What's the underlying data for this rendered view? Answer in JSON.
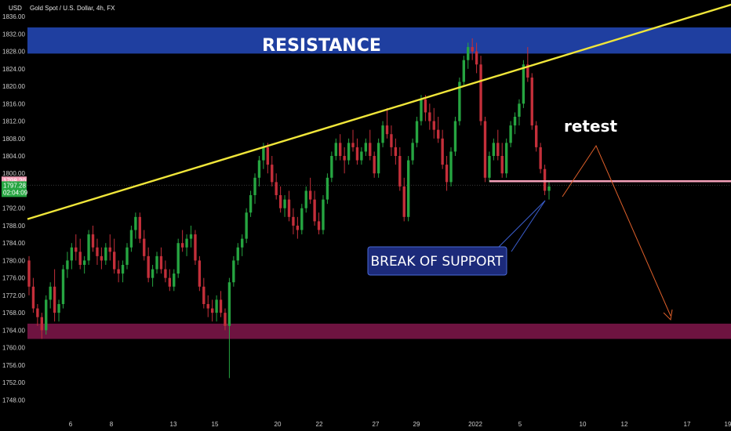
{
  "header": {
    "symbol": "Gold Spot / U.S. Dollar, 4h, FX",
    "currency": "USD"
  },
  "annotations": {
    "resistance": "RESISTANCE",
    "retest": "retest",
    "break_of_support": "BREAK OF SUPPORT"
  },
  "colors": {
    "background": "#000000",
    "bull": "#26a541",
    "bear": "#c42f3a",
    "resistance_zone": "#1f3fa0",
    "support_zone": "#6e1340",
    "trendline": "#f0e63a",
    "support_line": "#f3a0b8",
    "arrow": "#e0602a",
    "break_box": "#1c2a7a"
  },
  "chart_data": {
    "type": "candlestick",
    "title": "Gold Spot / U.S. Dollar, 4h, FX",
    "ylim": [
      1745,
      1838
    ],
    "y_ticks": [
      "1748.00",
      "1752.00",
      "1756.00",
      "1760.00",
      "1764.00",
      "1768.00",
      "1772.00",
      "1776.00",
      "1780.00",
      "1784.00",
      "1788.00",
      "1792.00",
      "1796.00",
      "1800.00",
      "1804.00",
      "1808.00",
      "1812.00",
      "1816.00",
      "1820.00",
      "1824.00",
      "1828.00",
      "1832.00",
      "1836.00"
    ],
    "x_ticks": [
      "6",
      "8",
      "13",
      "15",
      "20",
      "22",
      "27",
      "29",
      "2022",
      "5",
      "10",
      "12",
      "17",
      "19"
    ],
    "price_tags": [
      {
        "value": 1798.2,
        "text": "1798.20",
        "color": "#f3a0b8"
      },
      {
        "value": 1797.28,
        "text": "1797.28",
        "color": "#26a541",
        "sub": "02:04:09"
      }
    ],
    "resistance_zone": [
      1827.5,
      1833.5
    ],
    "support_zone": [
      1762,
      1765.5
    ],
    "support_level": 1798.2,
    "trendline": {
      "from_bar": 0,
      "from_price": 1789.5,
      "to_bar": 174,
      "to_price": 1841.5
    },
    "candles": [
      [
        1780,
        1781,
        1772,
        1774
      ],
      [
        1774,
        1776,
        1768,
        1769
      ],
      [
        1769,
        1770,
        1765,
        1767
      ],
      [
        1767,
        1768,
        1762,
        1764
      ],
      [
        1764,
        1772,
        1763,
        1771
      ],
      [
        1771,
        1775,
        1769,
        1774
      ],
      [
        1774,
        1778,
        1766,
        1768
      ],
      [
        1768,
        1771,
        1766,
        1770
      ],
      [
        1770,
        1779,
        1769,
        1778
      ],
      [
        1778,
        1782,
        1776,
        1780
      ],
      [
        1780,
        1784,
        1778,
        1783
      ],
      [
        1783,
        1786,
        1780,
        1782
      ],
      [
        1782,
        1785,
        1778,
        1779
      ],
      [
        1779,
        1781,
        1777,
        1780
      ],
      [
        1780,
        1787,
        1779,
        1786
      ],
      [
        1786,
        1788,
        1782,
        1783
      ],
      [
        1783,
        1785,
        1779,
        1781
      ],
      [
        1781,
        1783,
        1778,
        1780
      ],
      [
        1780,
        1784,
        1779,
        1783
      ],
      [
        1783,
        1786,
        1780,
        1782
      ],
      [
        1782,
        1785,
        1777,
        1778
      ],
      [
        1778,
        1780,
        1775,
        1777
      ],
      [
        1777,
        1780,
        1775,
        1779
      ],
      [
        1779,
        1784,
        1778,
        1783
      ],
      [
        1783,
        1788,
        1782,
        1787
      ],
      [
        1787,
        1791,
        1785,
        1790
      ],
      [
        1790,
        1791,
        1784,
        1785
      ],
      [
        1785,
        1787,
        1780,
        1781
      ],
      [
        1781,
        1783,
        1775,
        1776
      ],
      [
        1776,
        1779,
        1774,
        1778
      ],
      [
        1778,
        1782,
        1777,
        1781
      ],
      [
        1781,
        1783,
        1777,
        1778
      ],
      [
        1778,
        1780,
        1775,
        1776
      ],
      [
        1776,
        1778,
        1773,
        1774
      ],
      [
        1774,
        1778,
        1773,
        1777
      ],
      [
        1777,
        1785,
        1776,
        1784
      ],
      [
        1784,
        1787,
        1782,
        1783
      ],
      [
        1783,
        1786,
        1781,
        1785
      ],
      [
        1785,
        1788,
        1783,
        1786
      ],
      [
        1786,
        1787,
        1779,
        1780
      ],
      [
        1780,
        1781,
        1773,
        1774
      ],
      [
        1774,
        1776,
        1769,
        1770
      ],
      [
        1770,
        1772,
        1767,
        1769
      ],
      [
        1769,
        1771,
        1766,
        1768
      ],
      [
        1768,
        1772,
        1766,
        1771
      ],
      [
        1771,
        1773,
        1767,
        1768
      ],
      [
        1768,
        1769,
        1764,
        1765
      ],
      [
        1765,
        1776,
        1753,
        1775
      ],
      [
        1775,
        1781,
        1774,
        1780
      ],
      [
        1780,
        1784,
        1779,
        1783
      ],
      [
        1783,
        1786,
        1781,
        1785
      ],
      [
        1785,
        1792,
        1784,
        1791
      ],
      [
        1791,
        1796,
        1790,
        1795
      ],
      [
        1795,
        1800,
        1793,
        1799
      ],
      [
        1799,
        1804,
        1797,
        1803
      ],
      [
        1803,
        1807,
        1801,
        1806
      ],
      [
        1806,
        1807,
        1800,
        1802
      ],
      [
        1802,
        1804,
        1797,
        1798
      ],
      [
        1798,
        1800,
        1794,
        1795
      ],
      [
        1795,
        1797,
        1791,
        1792
      ],
      [
        1792,
        1795,
        1790,
        1794
      ],
      [
        1794,
        1796,
        1789,
        1790
      ],
      [
        1790,
        1792,
        1786,
        1788
      ],
      [
        1788,
        1790,
        1785,
        1787
      ],
      [
        1787,
        1793,
        1786,
        1792
      ],
      [
        1792,
        1797,
        1791,
        1796
      ],
      [
        1796,
        1799,
        1793,
        1794
      ],
      [
        1794,
        1796,
        1788,
        1789
      ],
      [
        1789,
        1791,
        1786,
        1787
      ],
      [
        1787,
        1795,
        1786,
        1794
      ],
      [
        1794,
        1800,
        1793,
        1799
      ],
      [
        1799,
        1805,
        1798,
        1804
      ],
      [
        1804,
        1808,
        1803,
        1807
      ],
      [
        1807,
        1809,
        1803,
        1804
      ],
      [
        1804,
        1806,
        1800,
        1803
      ],
      [
        1803,
        1808,
        1802,
        1807
      ],
      [
        1807,
        1810,
        1805,
        1806
      ],
      [
        1806,
        1808,
        1802,
        1803
      ],
      [
        1803,
        1806,
        1802,
        1805
      ],
      [
        1805,
        1808,
        1804,
        1807
      ],
      [
        1807,
        1810,
        1803,
        1804
      ],
      [
        1804,
        1805,
        1799,
        1800
      ],
      [
        1800,
        1808,
        1799,
        1807
      ],
      [
        1807,
        1812,
        1806,
        1811
      ],
      [
        1811,
        1815,
        1808,
        1809
      ],
      [
        1809,
        1811,
        1804,
        1806
      ],
      [
        1806,
        1808,
        1802,
        1804
      ],
      [
        1804,
        1806,
        1796,
        1797
      ],
      [
        1797,
        1799,
        1789,
        1790
      ],
      [
        1790,
        1804,
        1789,
        1803
      ],
      [
        1803,
        1808,
        1802,
        1807
      ],
      [
        1807,
        1813,
        1806,
        1812
      ],
      [
        1812,
        1818,
        1811,
        1817
      ],
      [
        1817,
        1818,
        1812,
        1814
      ],
      [
        1814,
        1816,
        1810,
        1812
      ],
      [
        1812,
        1815,
        1808,
        1810
      ],
      [
        1810,
        1813,
        1807,
        1808
      ],
      [
        1808,
        1810,
        1801,
        1802
      ],
      [
        1802,
        1804,
        1796,
        1798
      ],
      [
        1798,
        1806,
        1797,
        1805
      ],
      [
        1805,
        1813,
        1804,
        1812
      ],
      [
        1812,
        1822,
        1811,
        1821
      ],
      [
        1821,
        1827,
        1820,
        1826
      ],
      [
        1826,
        1830,
        1824,
        1829
      ],
      [
        1829,
        1831,
        1826,
        1828
      ],
      [
        1828,
        1830,
        1823,
        1825
      ],
      [
        1825,
        1827,
        1811,
        1812
      ],
      [
        1812,
        1813,
        1798,
        1799
      ],
      [
        1799,
        1805,
        1798,
        1804
      ],
      [
        1804,
        1808,
        1803,
        1807
      ],
      [
        1807,
        1810,
        1803,
        1804
      ],
      [
        1804,
        1807,
        1799,
        1800
      ],
      [
        1800,
        1808,
        1799,
        1807
      ],
      [
        1807,
        1812,
        1806,
        1811
      ],
      [
        1811,
        1814,
        1809,
        1813
      ],
      [
        1813,
        1817,
        1811,
        1816
      ],
      [
        1816,
        1826,
        1815,
        1825
      ],
      [
        1825,
        1829,
        1821,
        1822
      ],
      [
        1822,
        1823,
        1810,
        1811
      ],
      [
        1811,
        1812,
        1805,
        1806
      ],
      [
        1806,
        1807,
        1800,
        1801
      ],
      [
        1801,
        1802,
        1795,
        1796
      ],
      [
        1796,
        1798,
        1794,
        1797
      ]
    ]
  }
}
